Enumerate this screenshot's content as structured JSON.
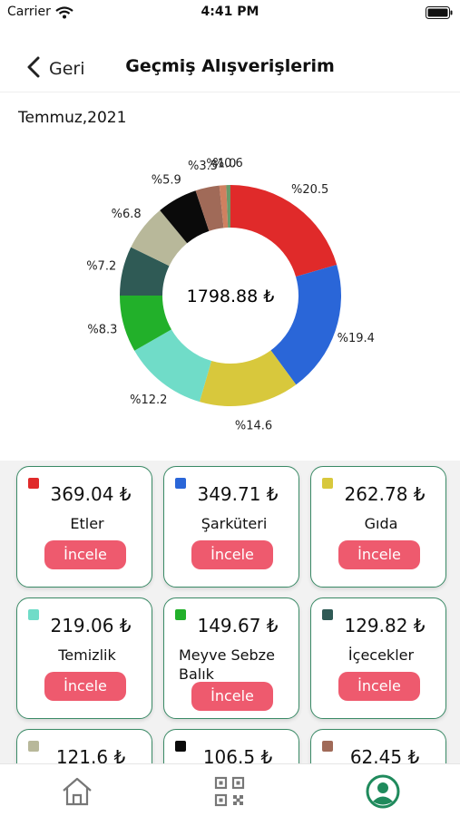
{
  "status": {
    "carrier": "Carrier",
    "time": "4:41 PM"
  },
  "nav": {
    "back_label": "Geri",
    "title": "Geçmiş Alışverişlerim"
  },
  "month": "Temmuz,2021",
  "chart_data": {
    "type": "pie",
    "donut": true,
    "center_label": "1798.88 ₺",
    "slices": [
      {
        "label": "Etler",
        "value": 20.5,
        "pct_label": "%20.5",
        "color": "#e02a2a"
      },
      {
        "label": "Şarküteri",
        "value": 19.4,
        "pct_label": "%19.4",
        "color": "#2a66d8"
      },
      {
        "label": "Gıda",
        "value": 14.6,
        "pct_label": "%14.6",
        "color": "#d8c83c"
      },
      {
        "label": "Temizlik",
        "value": 12.2,
        "pct_label": "%12.2",
        "color": "#70dcc8"
      },
      {
        "label": "Meyve Sebze Balık",
        "value": 8.3,
        "pct_label": "%8.3",
        "color": "#22b02a"
      },
      {
        "label": "İçecekler",
        "value": 7.2,
        "pct_label": "%7.2",
        "color": "#2f5a55"
      },
      {
        "label": "",
        "value": 6.8,
        "pct_label": "%6.8",
        "color": "#b8b89a"
      },
      {
        "label": "",
        "value": 5.9,
        "pct_label": "%5.9",
        "color": "#0a0a0a"
      },
      {
        "label": "",
        "value": 3.5,
        "pct_label": "%3.5",
        "color": "#a06a58"
      },
      {
        "label": "",
        "value": 1.0,
        "pct_label": "%1.0",
        "color": "#d08060"
      },
      {
        "label": "",
        "value": 0.6,
        "pct_label": "%0.6",
        "color": "#6a9a6a"
      }
    ]
  },
  "cards": [
    {
      "amount": "369.04 ₺",
      "name": "Etler",
      "button": "İncele",
      "color": "#e02a2a"
    },
    {
      "amount": "349.71 ₺",
      "name": "Şarküteri",
      "button": "İncele",
      "color": "#2a66d8"
    },
    {
      "amount": "262.78 ₺",
      "name": "Gıda",
      "button": "İncele",
      "color": "#d8c83c"
    },
    {
      "amount": "219.06 ₺",
      "name": "Temizlik",
      "button": "İncele",
      "color": "#70dcc8"
    },
    {
      "amount": "149.67 ₺",
      "name": "Meyve Sebze Balık",
      "button": "İncele",
      "color": "#22b02a"
    },
    {
      "amount": "129.82 ₺",
      "name": "İçecekler",
      "button": "İncele",
      "color": "#2f5a55"
    },
    {
      "amount": "121.6 ₺",
      "name": "",
      "button": "",
      "color": "#b8b89a"
    },
    {
      "amount": "106.5 ₺",
      "name": "",
      "button": "",
      "color": "#0a0a0a"
    },
    {
      "amount": "62.45 ₺",
      "name": "",
      "button": "",
      "color": "#a06a58"
    }
  ],
  "tabbar": {
    "active_color": "#1f8a5c",
    "items": [
      "home-icon",
      "qr-code-icon",
      "profile-icon"
    ]
  }
}
